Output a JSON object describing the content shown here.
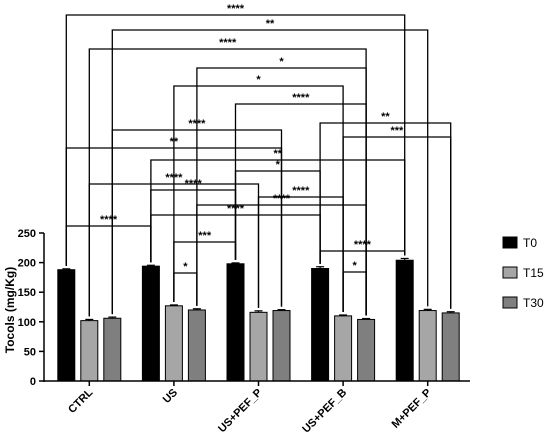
{
  "chart_data": {
    "type": "bar",
    "ylabel": "Tocols (mg/Kg)",
    "ylim": [
      0,
      250
    ],
    "yticks": [
      0,
      50,
      100,
      150,
      200,
      250
    ],
    "categories": [
      "CTRL",
      "US",
      "US+PEF_P",
      "US+PEF_B",
      "M+PEF_P"
    ],
    "series": [
      {
        "name": "T0",
        "color": "#000000",
        "values": [
          188,
          194,
          198,
          190,
          204
        ],
        "errors": [
          1.5,
          1.5,
          1.5,
          3,
          3
        ]
      },
      {
        "name": "T15",
        "color": "#a6a6a6",
        "values": [
          102,
          127,
          116,
          110,
          119
        ],
        "errors": [
          2,
          1.5,
          2.5,
          1.5,
          2
        ]
      },
      {
        "name": "T30",
        "color": "#7f7f7f",
        "values": [
          106,
          120,
          119,
          104,
          115
        ],
        "errors": [
          2,
          2,
          1.5,
          1.5,
          2
        ]
      }
    ],
    "legend_position": "right",
    "error_bars": true,
    "significance": [
      {
        "label": "****",
        "from": [
          0,
          0
        ],
        "to": [
          4,
          0
        ]
      },
      {
        "label": "**",
        "from": [
          0,
          2
        ],
        "to": [
          4,
          1
        ]
      },
      {
        "label": "****",
        "from": [
          0,
          1
        ],
        "to": [
          3,
          2
        ]
      },
      {
        "label": "*",
        "from": [
          1,
          2
        ],
        "to": [
          3,
          2
        ]
      },
      {
        "label": "*",
        "from": [
          1,
          1
        ],
        "to": [
          3,
          1
        ]
      },
      {
        "label": "****",
        "from": [
          2,
          0
        ],
        "to": [
          3,
          2
        ]
      },
      {
        "label": "**",
        "from": [
          3,
          0
        ],
        "to": [
          4,
          2
        ]
      },
      {
        "label": "****",
        "from": [
          0,
          2
        ],
        "to": [
          2,
          2
        ]
      },
      {
        "label": "***",
        "from": [
          3,
          1
        ],
        "to": [
          4,
          2
        ]
      },
      {
        "label": "**",
        "from": [
          0,
          0
        ],
        "to": [
          2,
          2
        ]
      },
      {
        "label": "**",
        "from": [
          1,
          0
        ],
        "to": [
          4,
          0
        ]
      },
      {
        "label": "*",
        "from": [
          2,
          0
        ],
        "to": [
          3,
          0
        ]
      },
      {
        "label": "****",
        "from": [
          0,
          1
        ],
        "to": [
          2,
          1
        ]
      },
      {
        "label": "****",
        "from": [
          1,
          0
        ],
        "to": [
          2,
          0
        ]
      },
      {
        "label": "****",
        "from": [
          2,
          1
        ],
        "to": [
          3,
          1
        ]
      },
      {
        "label": "****",
        "from": [
          1,
          2
        ],
        "to": [
          3,
          2
        ]
      },
      {
        "label": "****",
        "from": [
          1,
          0
        ],
        "to": [
          3,
          0
        ]
      },
      {
        "label": "****",
        "from": [
          0,
          0
        ],
        "to": [
          1,
          0
        ]
      },
      {
        "label": "***",
        "from": [
          1,
          1
        ],
        "to": [
          2,
          0
        ]
      },
      {
        "label": "****",
        "from": [
          3,
          0
        ],
        "to": [
          4,
          0
        ]
      },
      {
        "label": "*",
        "from": [
          1,
          1
        ],
        "to": [
          1,
          2
        ]
      },
      {
        "label": "*",
        "from": [
          3,
          1
        ],
        "to": [
          3,
          2
        ]
      }
    ]
  }
}
